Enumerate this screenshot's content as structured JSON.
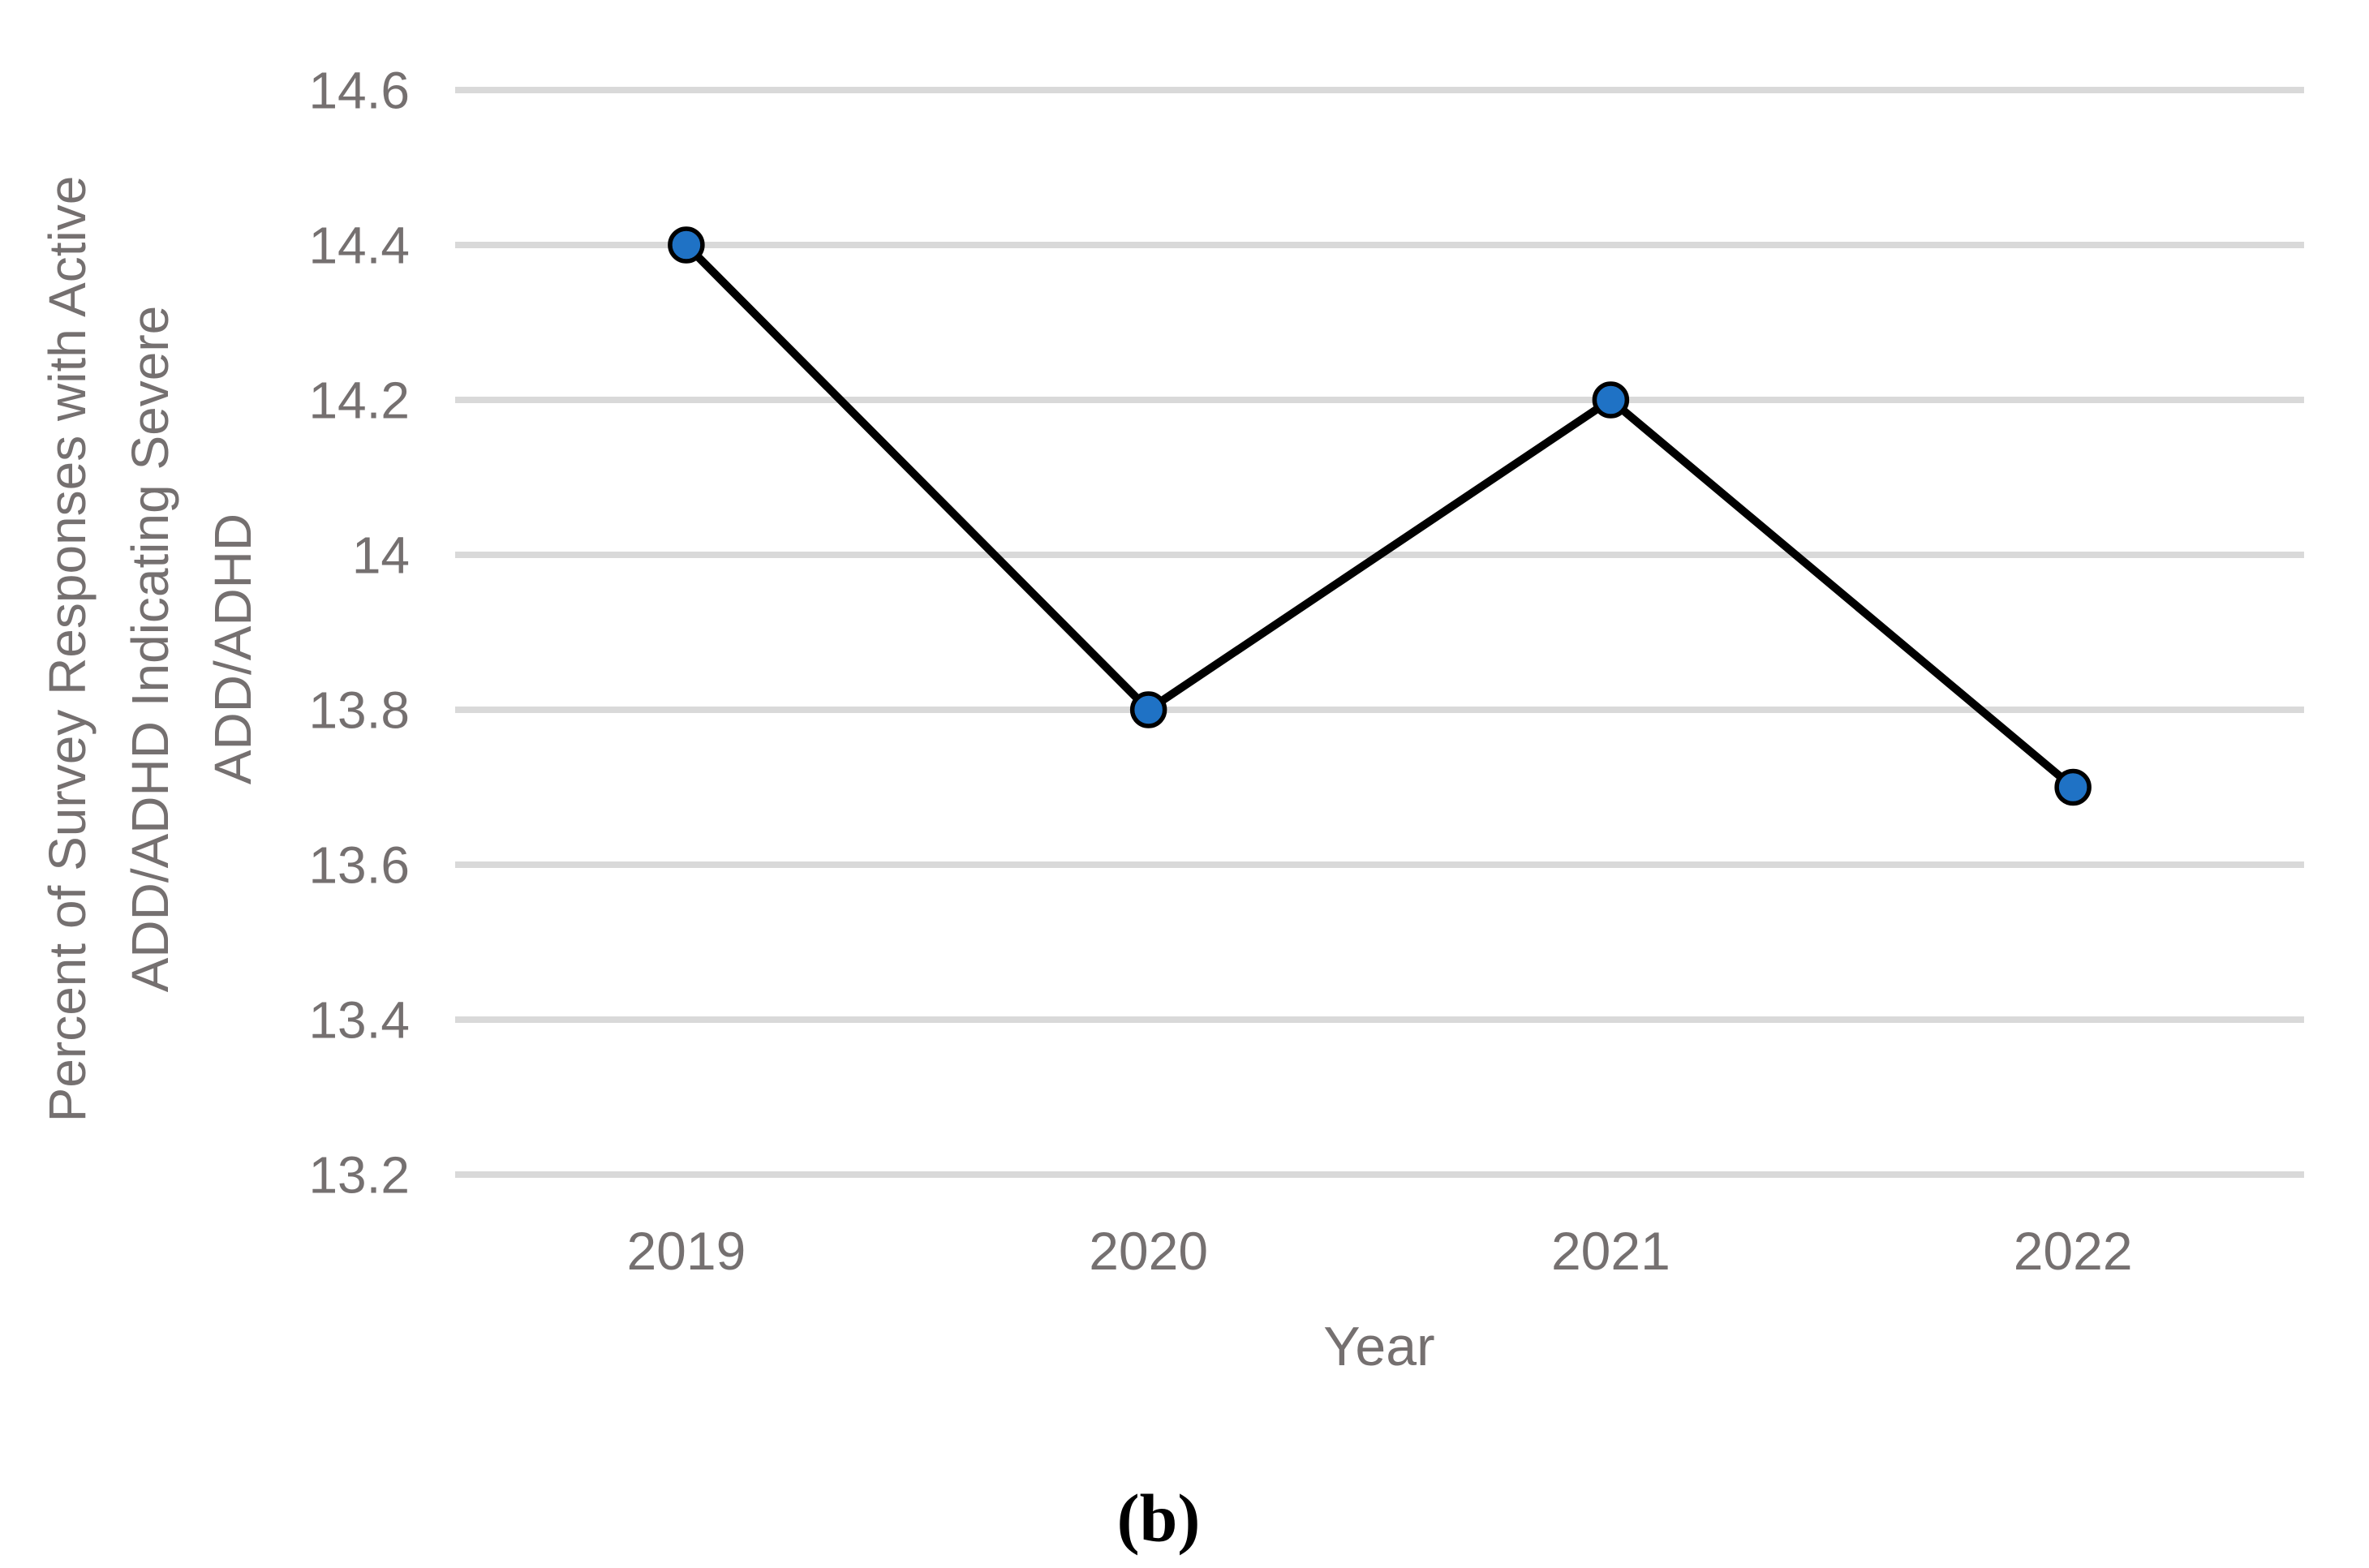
{
  "figure": {
    "caption": "(b)"
  },
  "chart_data": {
    "type": "line",
    "title": "",
    "categories": [
      "2019",
      "2020",
      "2021",
      "2022"
    ],
    "series": [
      {
        "name": "Percent of Survey Responses with Active ADD/ADHD Indicating Severe ADD/ADHD",
        "values": [
          14.4,
          13.8,
          14.2,
          13.7
        ]
      }
    ],
    "xlabel": "Year",
    "ylabel": "Percent of Survey Responses with Active ADD/ADHD Indicating Severe ADD/ADHD",
    "ylabel_lines": [
      "Percent of Survey Responses with Active",
      "ADD/ADHD Indicating Severe",
      "ADD/ADHD"
    ],
    "ylim": [
      13.2,
      14.6
    ],
    "ytick_step": 0.2,
    "yticks": [
      "14.6",
      "14.4",
      "14.2",
      "14",
      "13.8",
      "13.6",
      "13.4",
      "13.2"
    ],
    "grid": true,
    "legend": "none",
    "colors": {
      "line": "#000000",
      "marker_fill": "#1F72C5",
      "marker_stroke": "#000000",
      "gridline": "#D9D9D9",
      "axis_text": "#757070",
      "caption_text": "#000000"
    }
  }
}
